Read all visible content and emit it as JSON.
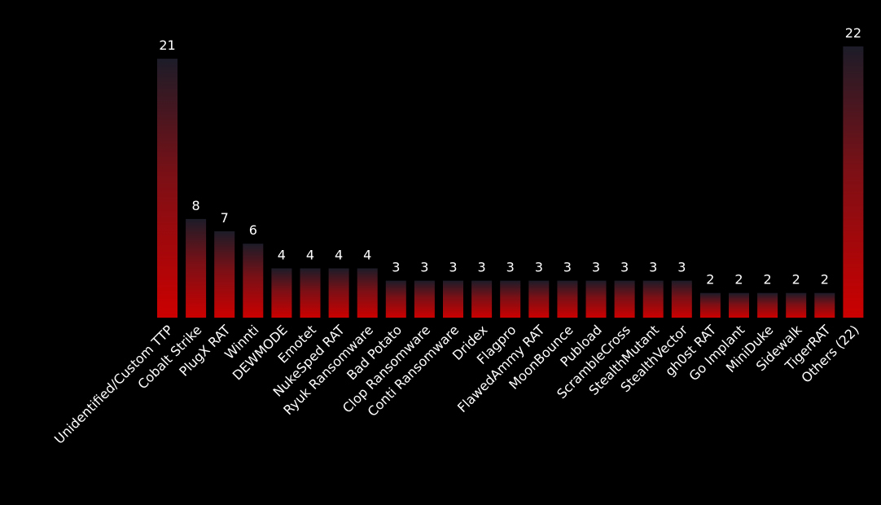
{
  "chart_data": {
    "type": "bar",
    "title": "",
    "xlabel": "",
    "ylabel": "",
    "ylim": [
      0,
      22
    ],
    "grid": false,
    "legend": "none",
    "categories": [
      "Unidentified/Custom TTP",
      "Cobalt Strike",
      "PlugX RAT",
      "Winnti",
      "DEWMODE",
      "Emotet",
      "NukeSped RAT",
      "Ryuk Ransomware",
      "Bad Potato",
      "Clop Ransomware",
      "Conti Ransomware",
      "Dridex",
      "Flagpro",
      "FlawedAmmy RAT",
      "MoonBounce",
      "Pubload",
      "ScrambleCross",
      "StealthMutant",
      "StealthVector",
      "gh0st RAT",
      "Go Implant",
      "MiniDuke",
      "Sidewalk",
      "TigerRAT",
      "Others (22)"
    ],
    "values": [
      21,
      8,
      7,
      6,
      4,
      4,
      4,
      4,
      3,
      3,
      3,
      3,
      3,
      3,
      3,
      3,
      3,
      3,
      3,
      2,
      2,
      2,
      2,
      2,
      22
    ],
    "colors": {
      "bar_bottom": "#cc0000",
      "bar_top": "#1c1c28",
      "text": "#ffffff",
      "background": "#000000"
    }
  }
}
